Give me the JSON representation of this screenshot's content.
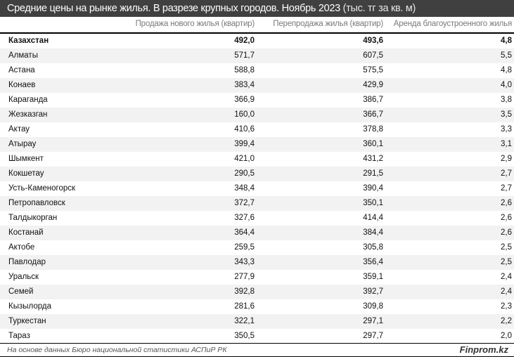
{
  "title": "Средние цены на рынке жилья. В разрезе крупных городов. Ноябрь 2023",
  "unit": "(тыс. тг за кв. м)",
  "columns": [
    "Продажа нового жилья (квартир)",
    "Перепродажа жилья (квартир)",
    "Аренда благоустроенного жилья"
  ],
  "rows": [
    {
      "city": "Казахстан",
      "new": "492,0",
      "resale": "493,6",
      "rent": "4,8",
      "bold": true
    },
    {
      "city": "Алматы",
      "new": "571,7",
      "resale": "607,5",
      "rent": "5,5"
    },
    {
      "city": "Астана",
      "new": "588,8",
      "resale": "575,5",
      "rent": "4,8"
    },
    {
      "city": "Конаев",
      "new": "383,4",
      "resale": "429,9",
      "rent": "4,0"
    },
    {
      "city": "Караганда",
      "new": "366,9",
      "resale": "386,7",
      "rent": "3,8"
    },
    {
      "city": "Жезказган",
      "new": "160,0",
      "resale": "366,7",
      "rent": "3,5"
    },
    {
      "city": "Актау",
      "new": "410,6",
      "resale": "378,8",
      "rent": "3,3"
    },
    {
      "city": "Атырау",
      "new": "399,4",
      "resale": "360,1",
      "rent": "3,1"
    },
    {
      "city": "Шымкент",
      "new": "421,0",
      "resale": "431,2",
      "rent": "2,9"
    },
    {
      "city": "Кокшетау",
      "new": "290,5",
      "resale": "291,5",
      "rent": "2,7"
    },
    {
      "city": "Усть-Каменогорск",
      "new": "348,4",
      "resale": "390,4",
      "rent": "2,7"
    },
    {
      "city": "Петропавловск",
      "new": "372,7",
      "resale": "350,1",
      "rent": "2,6"
    },
    {
      "city": "Талдыкорган",
      "new": "327,6",
      "resale": "414,4",
      "rent": "2,6"
    },
    {
      "city": "Костанай",
      "new": "364,4",
      "resale": "384,4",
      "rent": "2,6"
    },
    {
      "city": "Актобе",
      "new": "259,5",
      "resale": "305,8",
      "rent": "2,5"
    },
    {
      "city": "Павлодар",
      "new": "343,3",
      "resale": "356,4",
      "rent": "2,5"
    },
    {
      "city": "Уральск",
      "new": "277,9",
      "resale": "359,1",
      "rent": "2,4"
    },
    {
      "city": "Семей",
      "new": "392,8",
      "resale": "392,7",
      "rent": "2,4"
    },
    {
      "city": "Кызылорда",
      "new": "281,6",
      "resale": "309,8",
      "rent": "2,3"
    },
    {
      "city": "Туркестан",
      "new": "322,1",
      "resale": "297,1",
      "rent": "2,2"
    },
    {
      "city": "Тараз",
      "new": "350,5",
      "resale": "297,7",
      "rent": "2,0"
    }
  ],
  "footer": {
    "source": "На основе данных Бюро национальной статистики АСПиР РК",
    "brand": "Finprom.kz"
  },
  "colors": {
    "title_bg": "#404040",
    "row_shade": "#f2f2f2",
    "header_text": "#7a7a7a"
  }
}
